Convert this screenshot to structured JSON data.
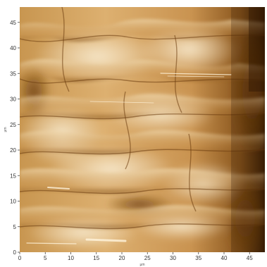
{
  "image": {
    "kind": "afm-topography-scan",
    "colormap": [
      "#3b1f05",
      "#7a4a12",
      "#b07a34",
      "#d9ad6c",
      "#f4e3c4"
    ]
  },
  "axes": {
    "x": {
      "label": "µm",
      "range": [
        0,
        48
      ],
      "ticks": [
        "0",
        "5",
        "10",
        "15",
        "20",
        "25",
        "30",
        "35",
        "40",
        "45"
      ]
    },
    "y": {
      "label": "µm",
      "range": [
        0,
        48
      ],
      "ticks": [
        "0",
        "5",
        "10",
        "15",
        "20",
        "25",
        "30",
        "35",
        "40",
        "45"
      ]
    }
  }
}
